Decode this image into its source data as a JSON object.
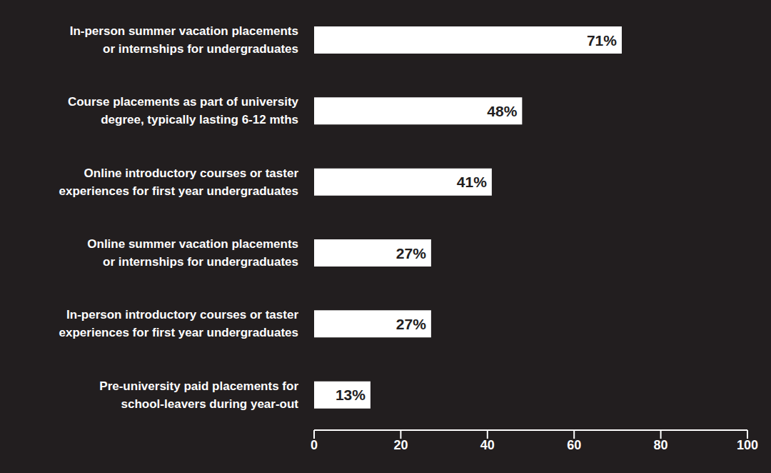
{
  "chart_data": {
    "type": "bar",
    "orientation": "horizontal",
    "categories": [
      "In-person summer vacation placements\nor internships for undergraduates",
      "Course placements as part of university\ndegree, typically lasting 6-12 mths",
      "Online introductory courses or taster\nexperiences for first year undergraduates",
      "Online summer vacation placements\nor internships for undergraduates",
      "In-person introductory courses or taster\nexperiences for first year undergraduates",
      "Pre-university paid placements for\nschool-leavers during year-out"
    ],
    "values": [
      71,
      48,
      41,
      27,
      27,
      13
    ],
    "value_labels": [
      "71%",
      "48%",
      "41%",
      "27%",
      "27%",
      "13%"
    ],
    "color": "#ffffff",
    "xlim": [
      0,
      100
    ],
    "xticks": [
      0,
      20,
      40,
      60,
      80,
      100
    ],
    "grid": false,
    "data_labels": true
  }
}
